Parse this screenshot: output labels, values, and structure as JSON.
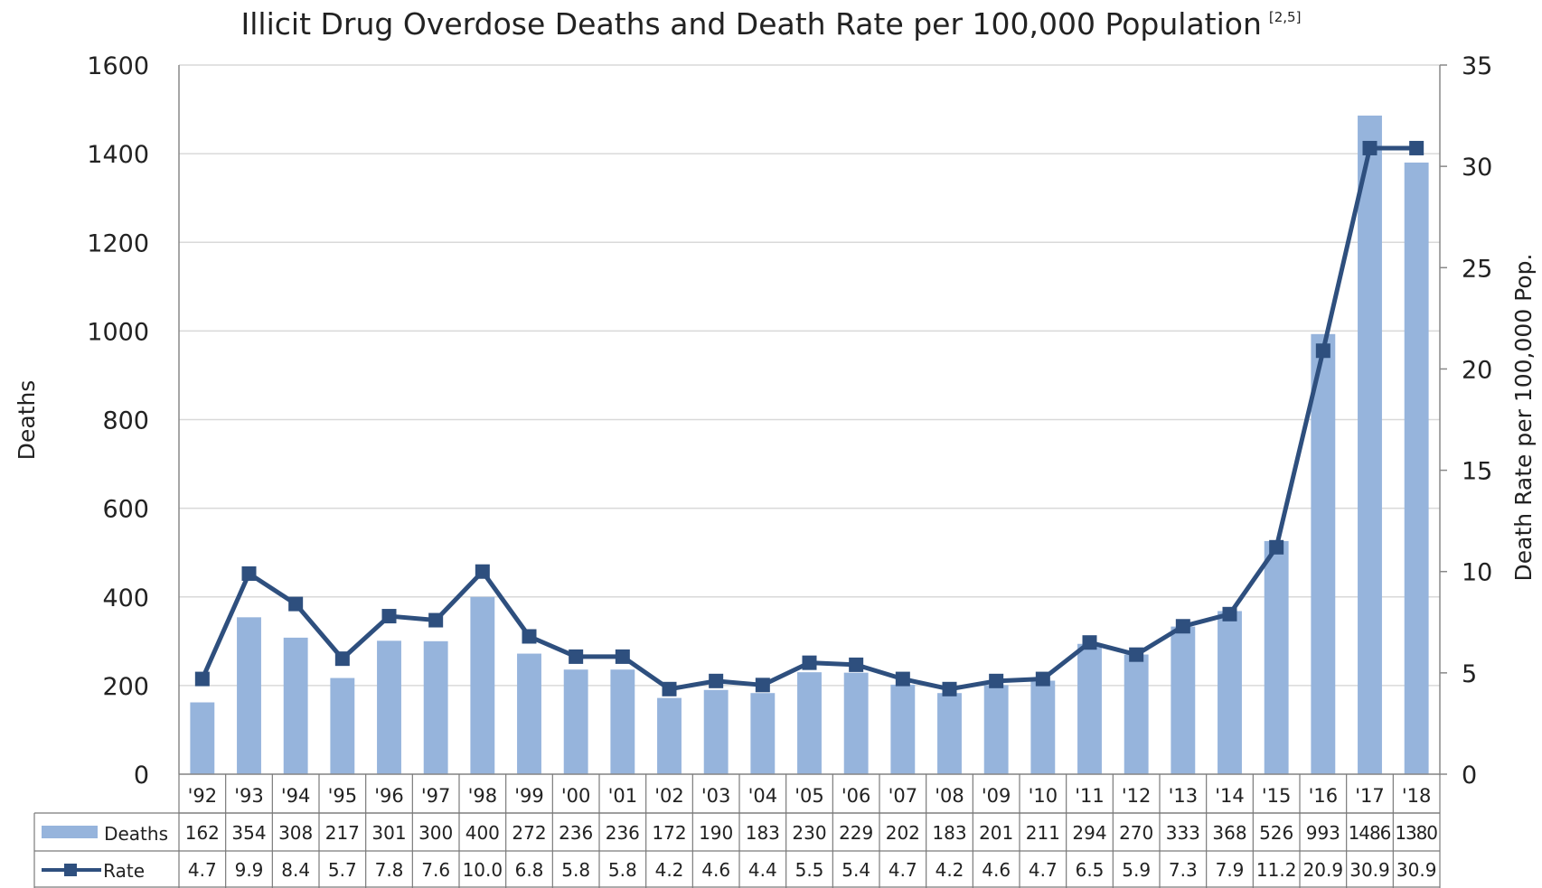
{
  "chart_data": {
    "type": "bar",
    "title": "Illicit Drug Overdose Deaths and Death Rate per 100,000 Population",
    "title_superscript": "[2,5]",
    "ylabel_left": "Deaths",
    "ylabel_right": "Death Rate per 100,000 Pop.",
    "ylim_left": [
      0,
      1600
    ],
    "ylim_right": [
      0,
      35
    ],
    "yticks_left": [
      "0",
      "200",
      "400",
      "600",
      "800",
      "1000",
      "1200",
      "1400",
      "1600"
    ],
    "yticks_right": [
      "0",
      "5",
      "10",
      "15",
      "20",
      "25",
      "30",
      "35"
    ],
    "grid": true,
    "legend_position": "data-table",
    "categories": [
      "'92",
      "'93",
      "'94",
      "'95",
      "'96",
      "'97",
      "'98",
      "'99",
      "'00",
      "'01",
      "'02",
      "'03",
      "'04",
      "'05",
      "'06",
      "'07",
      "'08",
      "'09",
      "'10",
      "'11",
      "'12",
      "'13",
      "'14",
      "'15",
      "'16",
      "'17",
      "'18"
    ],
    "series": [
      {
        "name": "Deaths",
        "kind": "bar",
        "axis": "left",
        "color": "#96b4dc",
        "values": [
          162,
          354,
          308,
          217,
          301,
          300,
          400,
          272,
          236,
          236,
          172,
          190,
          183,
          230,
          229,
          202,
          183,
          201,
          211,
          294,
          270,
          333,
          368,
          526,
          993,
          1486,
          1380
        ]
      },
      {
        "name": "Rate",
        "kind": "line",
        "axis": "right",
        "color": "#2e4f7e",
        "values": [
          4.7,
          9.9,
          8.4,
          5.7,
          7.8,
          7.6,
          10.0,
          6.8,
          5.8,
          5.8,
          4.2,
          4.6,
          4.4,
          5.5,
          5.4,
          4.7,
          4.2,
          4.6,
          4.7,
          6.5,
          5.9,
          7.3,
          7.9,
          11.2,
          20.9,
          30.9,
          30.9
        ],
        "labels": [
          "4.7",
          "9.9",
          "8.4",
          "5.7",
          "7.8",
          "7.6",
          "10.0",
          "6.8",
          "5.8",
          "5.8",
          "4.2",
          "4.6",
          "4.4",
          "5.5",
          "5.4",
          "4.7",
          "4.2",
          "4.6",
          "4.7",
          "6.5",
          "5.9",
          "7.3",
          "7.9",
          "11.2",
          "20.9",
          "30.9",
          "30.9"
        ]
      }
    ]
  }
}
